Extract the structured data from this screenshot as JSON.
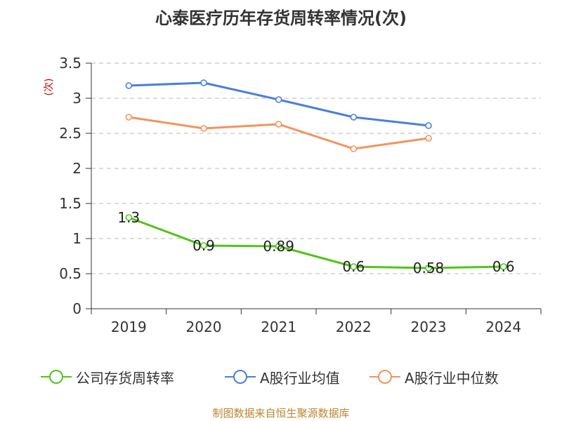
{
  "chart_data": {
    "type": "line",
    "title": "心泰医疗历年存货周转率情况(次)",
    "ylabel": "(次)",
    "xlabel": "",
    "categories": [
      "2019",
      "2020",
      "2021",
      "2022",
      "2023",
      "2024"
    ],
    "ylim": [
      0,
      3.5
    ],
    "yticks": [
      "0",
      "0.5",
      "1",
      "1.5",
      "2",
      "2.5",
      "3",
      "3.5"
    ],
    "grid": true,
    "legend_position": "bottom",
    "series": [
      {
        "name": "公司存货周转率",
        "color": "#52c41a",
        "values": [
          1.3,
          0.9,
          0.89,
          0.6,
          0.58,
          0.6
        ],
        "labels": [
          "1.3",
          "0.9",
          "0.89",
          "0.6",
          "0.58",
          "0.6"
        ]
      },
      {
        "name": "A股行业均值",
        "color": "#4a7fdb",
        "values": [
          3.18,
          3.22,
          2.98,
          2.73,
          2.61,
          null
        ]
      },
      {
        "name": "A股行业中位数",
        "color": "#f4935c",
        "values": [
          2.73,
          2.57,
          2.63,
          2.28,
          2.43,
          null
        ]
      }
    ],
    "source": "制图数据来自恒生聚源数据库"
  }
}
